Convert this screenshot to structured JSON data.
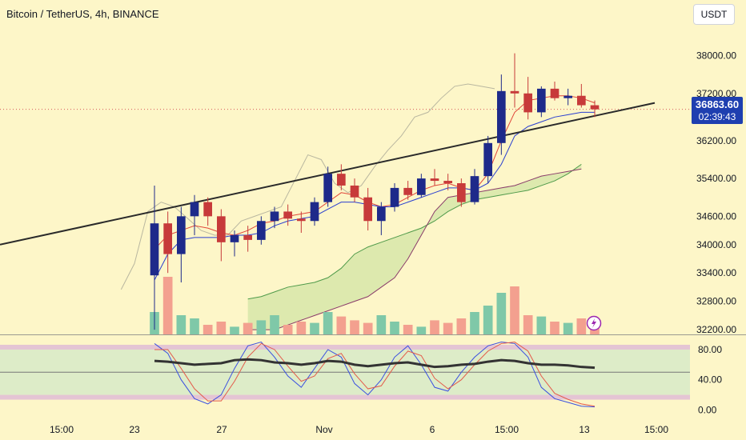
{
  "header": {
    "title": "Bitcoin / TetherUS, 4h, BINANCE",
    "currency_label": "USDT"
  },
  "price_tag": {
    "price": "36863.60",
    "countdown": "02:39:43"
  },
  "colors": {
    "background": "#fdf6c8",
    "candle_up": "#1e2a8a",
    "candle_down": "#c73a3a",
    "trendline": "#2a2a2a",
    "tenkan": "#e0473a",
    "kijun": "#2a3fd0",
    "chikou": "#b9b7a0",
    "cloud_fill": "#d5e6a8",
    "span_a": "#4f9a4a",
    "span_b": "#8a3b6a",
    "volume_up": "#7fc8a8",
    "volume_down": "#f3a08f",
    "stoch_k": "#3a4fe0",
    "stoch_d": "#e45a4a",
    "rsi_thick": "#333333",
    "band_fill": "#cfe8c8",
    "band_edge": "#d8b0d8"
  },
  "chart_data": [
    {
      "type": "candlestick",
      "title": "Bitcoin / TetherUS, 4h, BINANCE",
      "x_tick_labels": [
        "15:00",
        "23",
        "27",
        "Nov",
        "6",
        "15:00",
        "13",
        "15:00"
      ],
      "y_tick_labels": [
        "38000.00",
        "37200.00",
        "36200.00",
        "35400.00",
        "34600.00",
        "34000.00",
        "33400.00",
        "32800.00",
        "32200.00"
      ],
      "ylim": [
        32100,
        38500
      ],
      "last_price": 36863.6,
      "candles": [
        [
          33350,
          35250,
          32200,
          34450
        ],
        [
          34450,
          34700,
          33400,
          33800
        ],
        [
          33800,
          34800,
          33200,
          34600
        ],
        [
          34600,
          35050,
          34200,
          34900
        ],
        [
          34900,
          35000,
          34400,
          34600
        ],
        [
          34600,
          34750,
          33650,
          34050
        ],
        [
          34050,
          34300,
          33750,
          34200
        ],
        [
          34200,
          34400,
          33850,
          34100
        ],
        [
          34100,
          34600,
          34000,
          34500
        ],
        [
          34500,
          34800,
          34350,
          34700
        ],
        [
          34700,
          34850,
          34400,
          34550
        ],
        [
          34550,
          34700,
          34250,
          34500
        ],
        [
          34500,
          35000,
          34400,
          34900
        ],
        [
          34900,
          35650,
          34800,
          35500
        ],
        [
          35500,
          35700,
          35150,
          35250
        ],
        [
          35250,
          35400,
          34900,
          35000
        ],
        [
          35000,
          35200,
          34300,
          34500
        ],
        [
          34500,
          34900,
          34200,
          34800
        ],
        [
          34800,
          35300,
          34700,
          35200
        ],
        [
          35200,
          35350,
          34950,
          35050
        ],
        [
          35050,
          35500,
          35000,
          35400
        ],
        [
          35400,
          35600,
          35250,
          35350
        ],
        [
          35350,
          35500,
          35150,
          35300
        ],
        [
          35300,
          35400,
          34800,
          34900
        ],
        [
          34900,
          35600,
          34850,
          35450
        ],
        [
          35450,
          36300,
          35300,
          36150
        ],
        [
          36150,
          37600,
          35900,
          37250
        ],
        [
          37250,
          38050,
          36900,
          37200
        ],
        [
          37200,
          37550,
          36650,
          36800
        ],
        [
          36800,
          37350,
          36700,
          37300
        ],
        [
          37300,
          37450,
          37050,
          37100
        ],
        [
          37100,
          37300,
          36950,
          37150
        ],
        [
          37150,
          37400,
          36900,
          36950
        ],
        [
          36950,
          37050,
          36700,
          36863.6
        ]
      ],
      "trendline": {
        "from": [
          "start",
          34000
        ],
        "to": [
          "end",
          37000
        ]
      },
      "tenkan_sen": [
        33900,
        34200,
        34300,
        34400,
        34350,
        34250,
        34200,
        34300,
        34450,
        34500,
        34600,
        34650,
        34700,
        34900,
        35100,
        35050,
        34900,
        34800,
        34850,
        35000,
        35150,
        35250,
        35300,
        35200,
        35150,
        35500,
        36200,
        36800,
        37050,
        37100,
        37150,
        37150,
        37100,
        37000
      ],
      "kijun_sen": [
        33250,
        33800,
        34100,
        34150,
        34150,
        34150,
        34200,
        34200,
        34250,
        34400,
        34500,
        34550,
        34600,
        34750,
        34900,
        34900,
        34850,
        34800,
        34800,
        34900,
        35000,
        35100,
        35200,
        35200,
        35150,
        35300,
        35700,
        36300,
        36500,
        36600,
        36700,
        36750,
        36800,
        36800
      ],
      "chikou_span": [
        33050,
        33600,
        34700,
        34900,
        34800,
        34550,
        34300,
        34200,
        34200,
        34500,
        34600,
        34700,
        34800,
        35350,
        35900,
        35800,
        35300,
        35100,
        35250,
        35650,
        36000,
        36300,
        36700,
        36800,
        37100,
        37350,
        37400,
        37350,
        37300
      ],
      "senkou_span_a": [
        32850,
        32900,
        33000,
        33100,
        33150,
        33200,
        33300,
        33500,
        33800,
        33950,
        34050,
        34150,
        34250,
        34350,
        34500,
        34700,
        34850,
        34950,
        35000,
        35050,
        35100,
        35150,
        35250,
        35350,
        35500,
        35700
      ],
      "senkou_span_b": [
        32200,
        32200,
        32200,
        32300,
        32400,
        32500,
        32600,
        32700,
        32800,
        32900,
        33100,
        33300,
        33700,
        34200,
        34700,
        35000,
        35050,
        35100,
        35150,
        35200,
        35250,
        35350,
        35450,
        35500,
        35550,
        35600
      ],
      "volume": [
        0.35,
        0.9,
        0.3,
        0.25,
        0.15,
        0.2,
        0.12,
        0.18,
        0.22,
        0.3,
        0.15,
        0.2,
        0.18,
        0.35,
        0.28,
        0.22,
        0.18,
        0.3,
        0.2,
        0.15,
        0.12,
        0.22,
        0.18,
        0.25,
        0.35,
        0.45,
        0.65,
        0.75,
        0.3,
        0.28,
        0.2,
        0.18,
        0.25,
        0.2
      ]
    },
    {
      "type": "line",
      "y_tick_labels": [
        "80.00",
        "40.00",
        "0.00"
      ],
      "ylim": [
        -8,
        98
      ],
      "band": [
        20,
        80
      ],
      "series": [
        {
          "values": [
            88,
            75,
            40,
            15,
            8,
            20,
            55,
            85,
            90,
            70,
            45,
            30,
            55,
            80,
            70,
            35,
            20,
            40,
            70,
            85,
            60,
            30,
            25,
            50,
            70,
            85,
            90,
            88,
            70,
            30,
            15,
            10,
            5,
            4
          ]
        },
        {
          "values": [
            80,
            80,
            55,
            28,
            12,
            12,
            38,
            70,
            88,
            80,
            58,
            38,
            45,
            68,
            75,
            48,
            28,
            32,
            58,
            78,
            72,
            42,
            28,
            40,
            60,
            78,
            88,
            90,
            78,
            45,
            22,
            14,
            8,
            5
          ]
        },
        {
          "values": [
            65,
            64,
            62,
            60,
            61,
            62,
            66,
            67,
            66,
            63,
            62,
            60,
            62,
            65,
            64,
            60,
            58,
            60,
            62,
            63,
            60,
            57,
            58,
            60,
            61,
            64,
            66,
            65,
            62,
            60,
            60,
            59,
            57,
            56
          ]
        }
      ]
    }
  ]
}
